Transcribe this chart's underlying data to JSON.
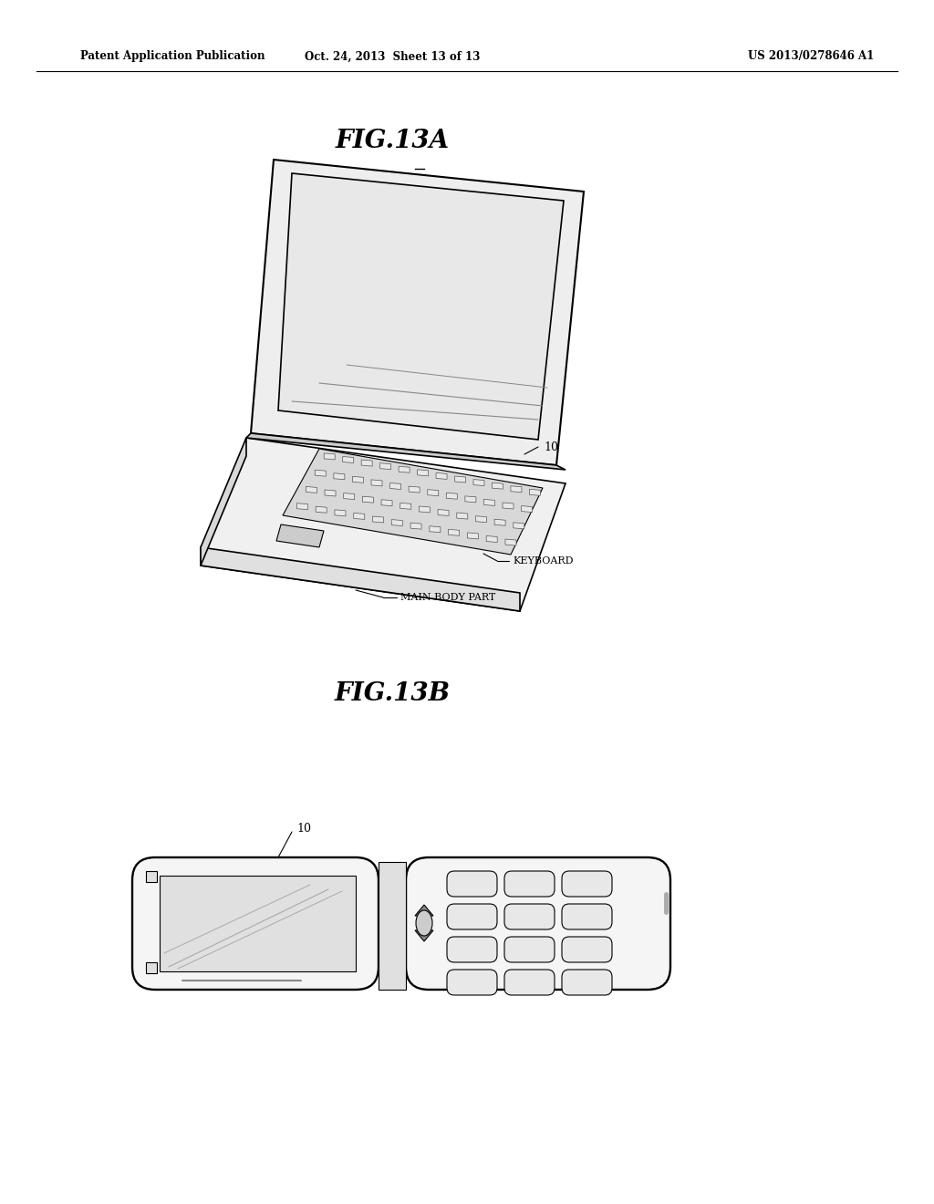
{
  "bg_color": "#ffffff",
  "text_color": "#000000",
  "header_left": "Patent Application Publication",
  "header_center": "Oct. 24, 2013  Sheet 13 of 13",
  "header_right": "US 2013/0278646 A1",
  "fig13a_title": "FIG.13A",
  "fig13b_title": "FIG.13B",
  "label_10_a": "10",
  "label_keyboard": "KEYBOARD",
  "label_main_body": "MAIN BODY PART",
  "label_10_b": "10",
  "line_color": "#000000",
  "line_width": 1.2
}
